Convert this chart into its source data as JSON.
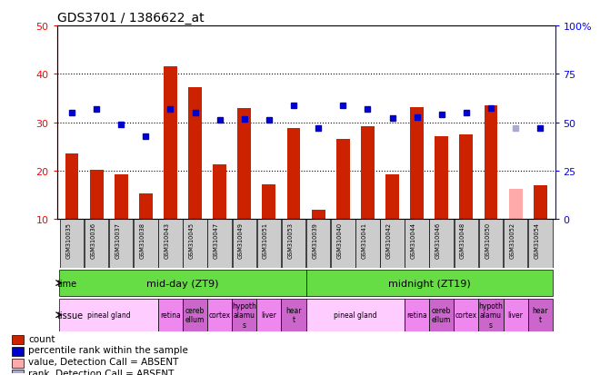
{
  "title": "GDS3701 / 1386622_at",
  "samples": [
    "GSM310035",
    "GSM310036",
    "GSM310037",
    "GSM310038",
    "GSM310043",
    "GSM310045",
    "GSM310047",
    "GSM310049",
    "GSM310051",
    "GSM310053",
    "GSM310039",
    "GSM310040",
    "GSM310041",
    "GSM310042",
    "GSM310044",
    "GSM310046",
    "GSM310048",
    "GSM310050",
    "GSM310052",
    "GSM310054"
  ],
  "bar_values": [
    23.5,
    20.2,
    19.3,
    15.2,
    41.5,
    37.2,
    21.2,
    33.0,
    17.2,
    28.8,
    12.0,
    26.5,
    29.2,
    19.2,
    33.2,
    27.2,
    27.5,
    33.5,
    16.2,
    17.0
  ],
  "bar_absent": [
    false,
    false,
    false,
    false,
    false,
    false,
    false,
    false,
    false,
    false,
    false,
    false,
    false,
    false,
    false,
    false,
    false,
    false,
    true,
    false
  ],
  "dot_values": [
    55.0,
    57.0,
    49.0,
    43.0,
    57.0,
    55.0,
    51.0,
    51.5,
    51.0,
    58.5,
    47.0,
    58.5,
    57.0,
    52.0,
    52.5,
    54.0,
    55.0,
    57.5,
    47.0,
    47.0
  ],
  "dot_absent": [
    false,
    false,
    false,
    false,
    false,
    false,
    false,
    false,
    false,
    false,
    false,
    false,
    false,
    false,
    false,
    false,
    false,
    false,
    true,
    false
  ],
  "left_ylim": [
    10,
    50
  ],
  "right_ylim": [
    0,
    100
  ],
  "left_yticks": [
    10,
    20,
    30,
    40,
    50
  ],
  "right_yticks": [
    0,
    25,
    50,
    75,
    100
  ],
  "right_yticklabels": [
    "0",
    "25",
    "50",
    "75",
    "100%"
  ],
  "bar_color": "#cc2200",
  "bar_absent_color": "#ffaaaa",
  "dot_color": "#0000cc",
  "dot_absent_color": "#aaaacc",
  "time_label_midday": "mid-day (ZT9)",
  "time_label_midnight": "midnight (ZT19)",
  "time_bg_color": "#66dd44",
  "tissue_pineal_color": "#ffccff",
  "tissue_other_color_a": "#ee88ee",
  "tissue_other_color_b": "#cc66cc",
  "sample_bg_color": "#cccccc",
  "midday_tissue": [
    {
      "label": "pineal gland",
      "start": 0,
      "end": 3,
      "color": "#ffccff"
    },
    {
      "label": "retina",
      "start": 4,
      "end": 4,
      "color": "#ee88ee"
    },
    {
      "label": "cereb\nellum",
      "start": 5,
      "end": 5,
      "color": "#cc66cc"
    },
    {
      "label": "cortex",
      "start": 6,
      "end": 6,
      "color": "#ee88ee"
    },
    {
      "label": "hypoth\nalamu\ns",
      "start": 7,
      "end": 7,
      "color": "#cc66cc"
    },
    {
      "label": "liver",
      "start": 8,
      "end": 8,
      "color": "#ee88ee"
    },
    {
      "label": "hear\nt",
      "start": 9,
      "end": 9,
      "color": "#cc66cc"
    }
  ],
  "midnight_tissue": [
    {
      "label": "pineal gland",
      "start": 10,
      "end": 13,
      "color": "#ffccff"
    },
    {
      "label": "retina",
      "start": 14,
      "end": 14,
      "color": "#ee88ee"
    },
    {
      "label": "cereb\nellum",
      "start": 15,
      "end": 15,
      "color": "#cc66cc"
    },
    {
      "label": "cortex",
      "start": 16,
      "end": 16,
      "color": "#ee88ee"
    },
    {
      "label": "hypoth\nalamu\ns",
      "start": 17,
      "end": 17,
      "color": "#cc66cc"
    },
    {
      "label": "liver",
      "start": 18,
      "end": 18,
      "color": "#ee88ee"
    },
    {
      "label": "hear\nt",
      "start": 19,
      "end": 19,
      "color": "#cc66cc"
    }
  ],
  "legend_items": [
    {
      "label": "count",
      "color": "#cc2200"
    },
    {
      "label": "percentile rank within the sample",
      "color": "#0000cc"
    },
    {
      "label": "value, Detection Call = ABSENT",
      "color": "#ffaaaa"
    },
    {
      "label": "rank, Detection Call = ABSENT",
      "color": "#aaaacc"
    }
  ]
}
